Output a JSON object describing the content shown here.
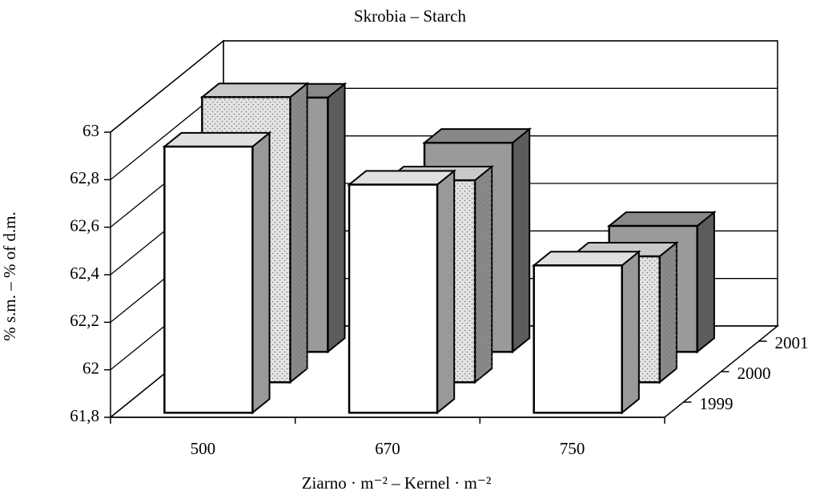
{
  "chart_data": {
    "type": "bar3d",
    "title": "Skrobia – Starch",
    "ylabel": "% s.m. – % of d.m.",
    "xlabel": "Ziarno · m⁻² – Kernel · m⁻²",
    "categories": [
      "500",
      "670",
      "750"
    ],
    "series": [
      {
        "name": "1999",
        "color": "#ffffff",
        "values": [
          62.92,
          62.76,
          62.42
        ]
      },
      {
        "name": "2000",
        "color": "#e4e4e4",
        "values": [
          63.0,
          62.65,
          62.33
        ]
      },
      {
        "name": "2001",
        "color": "#9a9a9a",
        "values": [
          62.87,
          62.68,
          62.33
        ]
      }
    ],
    "ylim": [
      61.8,
      63
    ],
    "yticks": [
      {
        "value": 61.8,
        "label": "61,8"
      },
      {
        "value": 62,
        "label": "62"
      },
      {
        "value": 62.2,
        "label": "62,2"
      },
      {
        "value": 62.4,
        "label": "62,4"
      },
      {
        "value": 62.6,
        "label": "62,6"
      },
      {
        "value": 62.8,
        "label": "62,8"
      },
      {
        "value": 63,
        "label": "63"
      }
    ],
    "grid": true
  }
}
